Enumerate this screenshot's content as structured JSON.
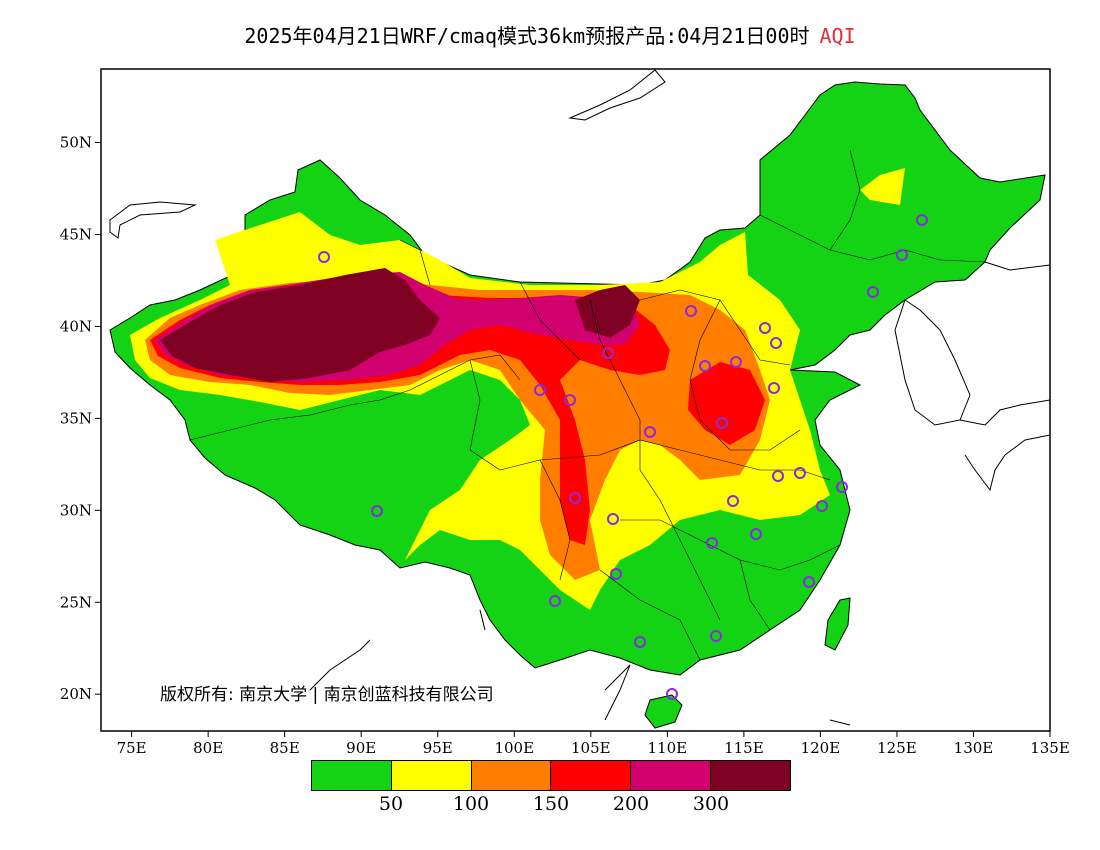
{
  "map": {
    "title_main": "2025年04月21日WRF/cmaq模式36km预报产品:04月21日00时",
    "title_param": "AQI",
    "lon_ticks": [
      "75E",
      "80E",
      "85E",
      "90E",
      "95E",
      "100E",
      "105E",
      "110E",
      "115E",
      "120E",
      "125E",
      "130E",
      "135E"
    ],
    "lat_ticks": [
      "50N",
      "45N",
      "40N",
      "35N",
      "30N",
      "25N",
      "20N"
    ],
    "lon_range": [
      73,
      135
    ],
    "lat_range": [
      18,
      54
    ],
    "copyright": "版权所有: 南京大学 | 南京创蓝科技有限公司",
    "legend": {
      "colors": [
        "#14d214",
        "#ffff00",
        "#ff7e00",
        "#ff0000",
        "#d2006e",
        "#7e0023"
      ],
      "thresholds": [
        "50",
        "100",
        "150",
        "200",
        "300"
      ]
    }
  }
}
